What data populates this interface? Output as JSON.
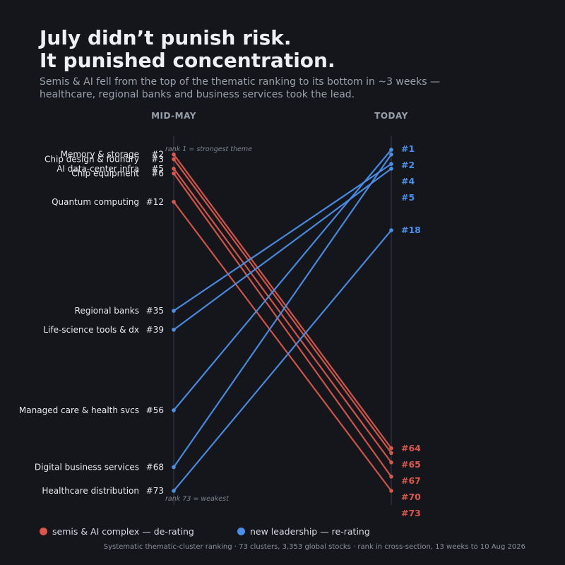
{
  "header": {
    "title_line1": "July didn’t punish risk.",
    "title_line2": "It punished concentration.",
    "subtitle_line1": "Semis & AI fell from the top of the thematic ranking to its bottom in ~3 weeks —",
    "subtitle_line2": "healthcare, regional banks and business services took the lead."
  },
  "colors": {
    "background": "#14161b",
    "de_rating": "#d9574b",
    "re_rating": "#4b8fe8",
    "axis": "#3a3f4b",
    "label": "#e8eaef",
    "muted": "#9aa0ab"
  },
  "chart_data": {
    "type": "slope",
    "axis_labels": {
      "left": "MID-MAY",
      "right": "TODAY"
    },
    "rank_range": [
      1,
      73
    ],
    "rank_notes": {
      "top": "rank 1 = strongest theme",
      "bottom": "rank 73 = weakest"
    },
    "series": [
      {
        "name": "Memory & storage",
        "group": "de_rating",
        "start_rank": 2,
        "end_rank": 64
      },
      {
        "name": "Chip design & foundry",
        "group": "de_rating",
        "start_rank": 3,
        "end_rank": 65
      },
      {
        "name": "AI data-center infra",
        "group": "de_rating",
        "start_rank": 5,
        "end_rank": 67
      },
      {
        "name": "Chip equipment",
        "group": "de_rating",
        "start_rank": 6,
        "end_rank": 70
      },
      {
        "name": "Quantum computing",
        "group": "de_rating",
        "start_rank": 12,
        "end_rank": 73
      },
      {
        "name": "Regional banks",
        "group": "re_rating",
        "start_rank": 35,
        "end_rank": 4
      },
      {
        "name": "Life-science tools & dx",
        "group": "re_rating",
        "start_rank": 39,
        "end_rank": 5
      },
      {
        "name": "Managed care & health svcs",
        "group": "re_rating",
        "start_rank": 56,
        "end_rank": 1
      },
      {
        "name": "Digital business services",
        "group": "re_rating",
        "start_rank": 68,
        "end_rank": 2
      },
      {
        "name": "Healthcare distribution",
        "group": "re_rating",
        "start_rank": 73,
        "end_rank": 18
      }
    ],
    "left_labels": [
      {
        "name": "Memory & storage",
        "rank": 2,
        "text": "#2"
      },
      {
        "name": "Chip design & foundry",
        "rank": 3,
        "text": "#3"
      },
      {
        "name": "AI data-center infra",
        "rank": 5,
        "text": "#5"
      },
      {
        "name": "Chip equipment",
        "rank": 6,
        "text": "#6"
      },
      {
        "name": "Quantum computing",
        "rank": 12,
        "text": "#12"
      },
      {
        "name": "Regional banks",
        "rank": 35,
        "text": "#35"
      },
      {
        "name": "Life-science tools & dx",
        "rank": 39,
        "text": "#39"
      },
      {
        "name": "Managed care & health svcs",
        "rank": 56,
        "text": "#56"
      },
      {
        "name": "Digital business services",
        "rank": 68,
        "text": "#68"
      },
      {
        "name": "Healthcare distribution",
        "rank": 73,
        "text": "#73"
      }
    ],
    "right_labels": [
      {
        "text": "#1",
        "group": "re_rating"
      },
      {
        "text": "#2",
        "group": "re_rating"
      },
      {
        "text": "#4",
        "group": "re_rating"
      },
      {
        "text": "#5",
        "group": "re_rating"
      },
      {
        "text": "#18",
        "group": "re_rating"
      },
      {
        "text": "#64",
        "group": "de_rating"
      },
      {
        "text": "#65",
        "group": "de_rating"
      },
      {
        "text": "#67",
        "group": "de_rating"
      },
      {
        "text": "#70",
        "group": "de_rating"
      },
      {
        "text": "#73",
        "group": "de_rating"
      }
    ]
  },
  "legend": {
    "de_rating_label": "semis & AI complex — de-rating",
    "re_rating_label": "new leadership — re-rating"
  },
  "footer": "Systematic thematic-cluster ranking · 73 clusters, 3,353 global stocks · rank in cross-section, 13 weeks to 10 Aug 2026"
}
